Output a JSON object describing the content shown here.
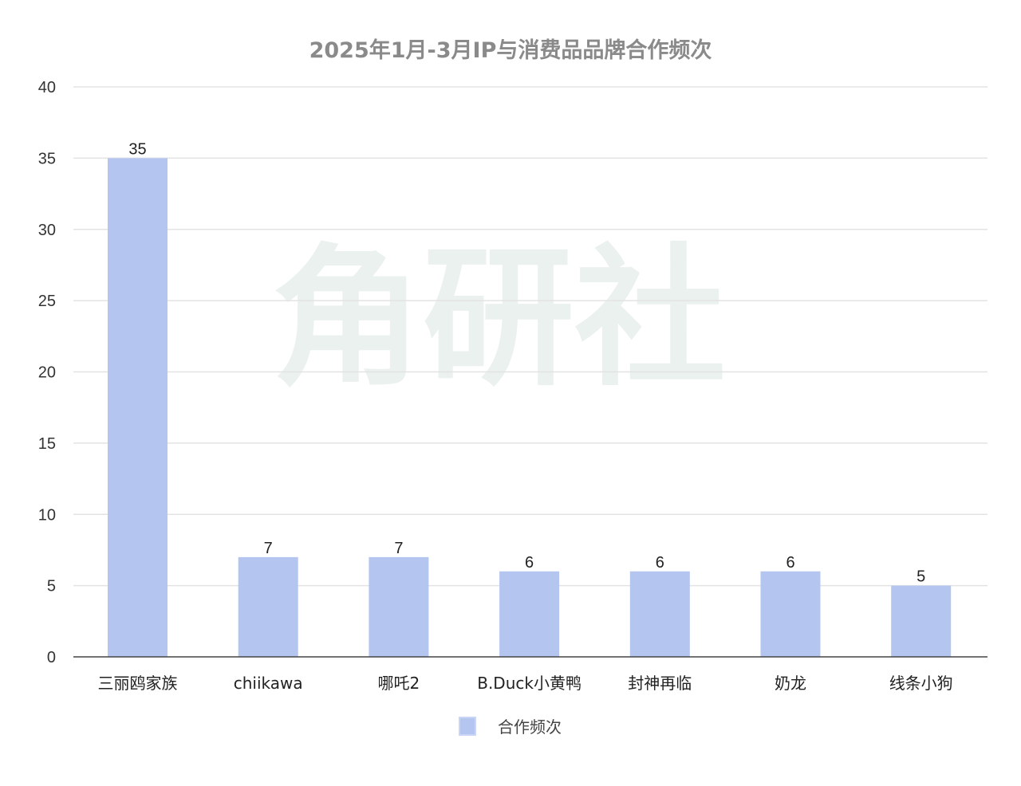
{
  "chart_data": {
    "type": "bar",
    "title": "2025年1月-3月IP与消费品品牌合作频次",
    "categories": [
      "三丽鸥家族",
      "chiikawa",
      "哪吒2",
      "B.Duck小黄鸭",
      "封神再临",
      "奶龙",
      "线条小狗"
    ],
    "series": [
      {
        "name": "合作频次",
        "values": [
          35,
          7,
          7,
          6,
          6,
          6,
          5
        ]
      }
    ],
    "xlabel": "",
    "ylabel": "",
    "ylim": [
      0,
      40
    ],
    "yticks": [
      0,
      5,
      10,
      15,
      20,
      25,
      30,
      35,
      40
    ],
    "grid": true,
    "legend": "bottom",
    "colors": {
      "bar": "#b4c5f0",
      "grid": "#e3e3e3",
      "axis": "#444444"
    },
    "data_labels": true
  },
  "watermark": {
    "text": "角研社"
  }
}
